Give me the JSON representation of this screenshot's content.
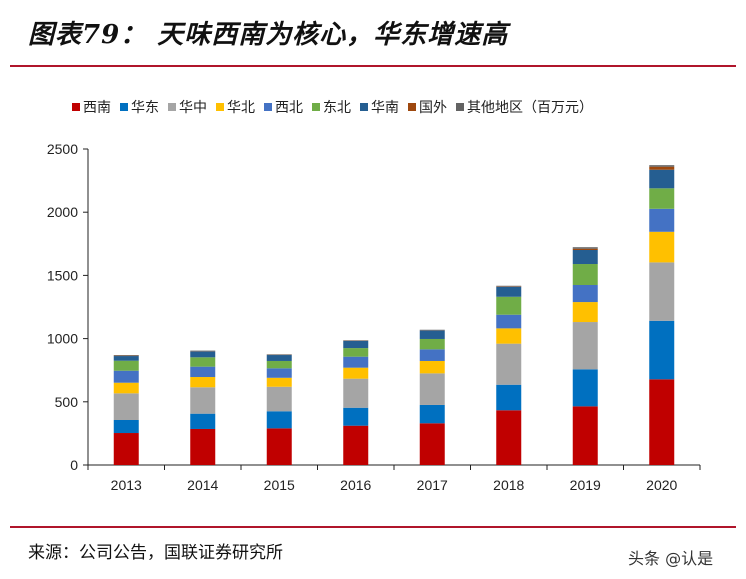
{
  "title": "图表79：  天味西南为核心，华东增速高",
  "source": "来源：公司公告，国联证券研究所",
  "watermark": "头条 @认是",
  "chart_data": {
    "type": "bar",
    "stacked": true,
    "title": "",
    "xlabel": "",
    "ylabel": "",
    "ylim": [
      0,
      2500
    ],
    "yticks": [
      0,
      500,
      1000,
      1500,
      2000,
      2500
    ],
    "grid": false,
    "legend_position": "top",
    "unit_note": "（百万元）",
    "categories": [
      "2013",
      "2014",
      "2015",
      "2016",
      "2017",
      "2018",
      "2019",
      "2020"
    ],
    "series": [
      {
        "name": "西南",
        "color": "#C00000",
        "values": [
          253,
          285,
          290,
          311,
          330,
          433,
          464,
          678
        ]
      },
      {
        "name": "华东",
        "color": "#0070C0",
        "values": [
          103,
          121,
          135,
          142,
          145,
          202,
          293,
          463
        ]
      },
      {
        "name": "华中",
        "color": "#A5A5A5",
        "values": [
          211,
          209,
          194,
          230,
          250,
          325,
          374,
          462
        ]
      },
      {
        "name": "华北",
        "color": "#FFC000",
        "values": [
          84,
          81,
          71,
          87,
          98,
          121,
          158,
          242
        ]
      },
      {
        "name": "西北",
        "color": "#4472C4",
        "values": [
          95,
          82,
          75,
          87,
          92,
          108,
          135,
          182
        ]
      },
      {
        "name": "东北",
        "color": "#70AD47",
        "values": [
          79,
          74,
          58,
          68,
          82,
          142,
          166,
          162
        ]
      },
      {
        "name": "华南",
        "color": "#255E91",
        "values": [
          37,
          47,
          47,
          56,
          68,
          79,
          111,
          147
        ]
      },
      {
        "name": "国外",
        "color": "#9E480E",
        "values": [
          3,
          2,
          2,
          2,
          2,
          3,
          10,
          24
        ]
      },
      {
        "name": "其他地区",
        "color": "#636363",
        "values": [
          5,
          4,
          4,
          4,
          3,
          5,
          12,
          12
        ]
      }
    ]
  }
}
